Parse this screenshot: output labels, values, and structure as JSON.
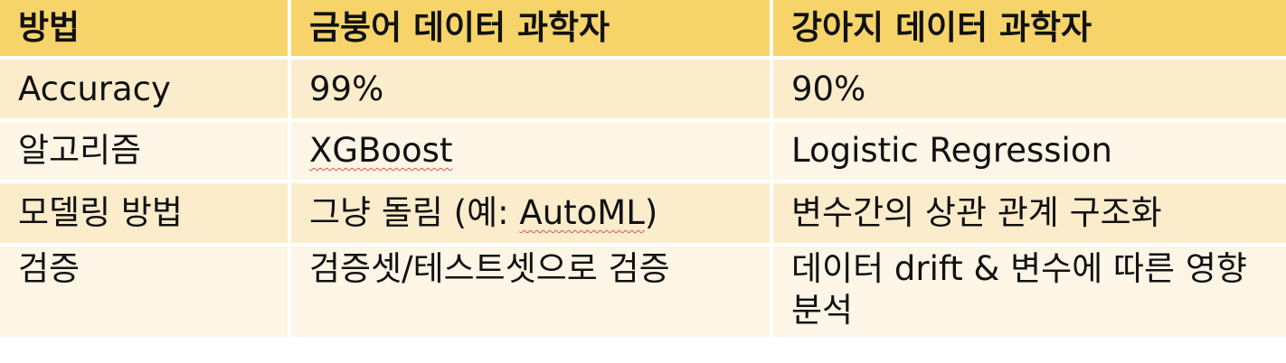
{
  "table": {
    "headers": [
      "방법",
      "금붕어 데이터 과학자",
      "강아지 데이터 과학자"
    ],
    "rows": [
      {
        "label": "Accuracy",
        "goldfish": "99%",
        "puppy": "90%"
      },
      {
        "label": "알고리즘",
        "goldfish": "XGBoost",
        "puppy": "Logistic Regression"
      },
      {
        "label": "모델링 방법",
        "goldfish_prefix": "그냥 돌림 (예: ",
        "goldfish_term": "AutoML",
        "goldfish_suffix": ")",
        "puppy": "변수간의 상관 관계 구조화"
      },
      {
        "label": "검증",
        "goldfish": "검증셋/테스트셋으로 검증",
        "puppy": "데이터 drift & 변수에 따른 영향 분석"
      }
    ]
  },
  "colors": {
    "header_bg": "#f6d46a",
    "row_odd_bg": "#fbeccc",
    "row_even_bg": "#fdf6e6",
    "spellcheck_underline": "#d9534f"
  }
}
